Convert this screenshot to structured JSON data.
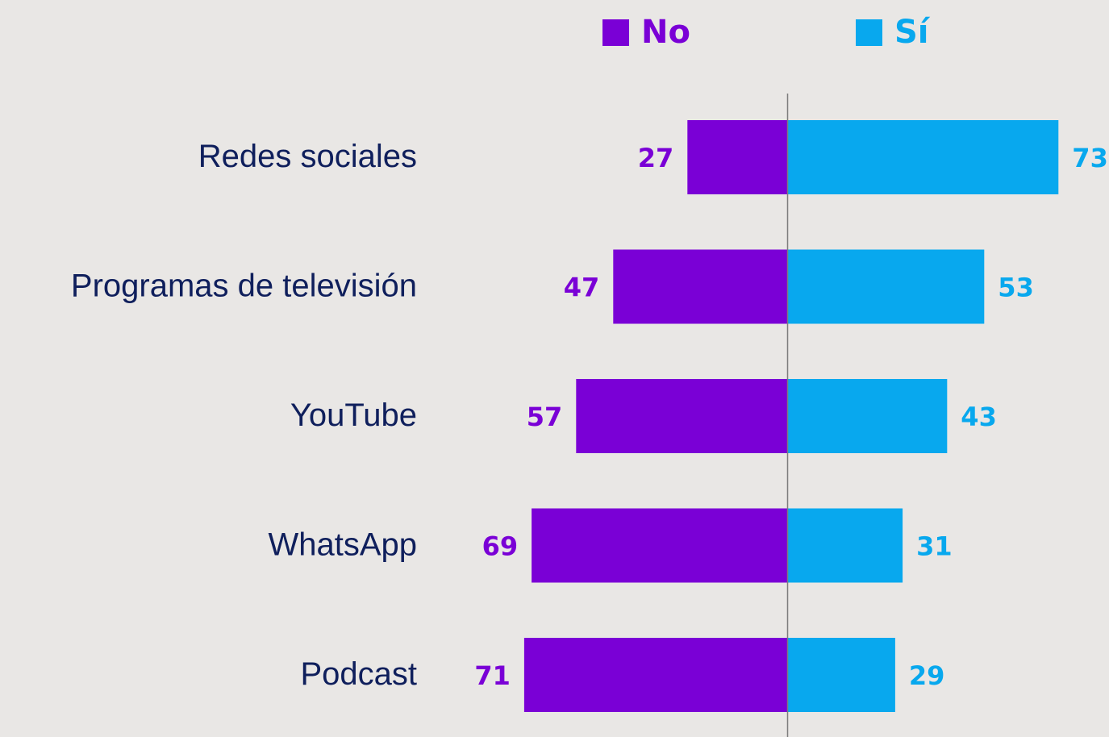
{
  "colors": {
    "no": "#7a00d6",
    "si": "#08a8ee",
    "category_text": "#0f1f5c",
    "axis": "#7d7d7d",
    "background": "#e9e7e5"
  },
  "chart_data": {
    "type": "bar",
    "orientation": "horizontal-diverging",
    "categories": [
      "Redes sociales",
      "Programas de televisión",
      "YouTube",
      "WhatsApp",
      "Podcast"
    ],
    "series": [
      {
        "name": "No",
        "values": [
          27,
          47,
          57,
          69,
          71
        ]
      },
      {
        "name": "Sí",
        "values": [
          73,
          53,
          43,
          31,
          29
        ]
      }
    ],
    "title": "",
    "xlabel": "",
    "ylabel": "",
    "xlim": [
      -100,
      100
    ],
    "grid": false,
    "legend": "top-center",
    "data_labels": true
  }
}
